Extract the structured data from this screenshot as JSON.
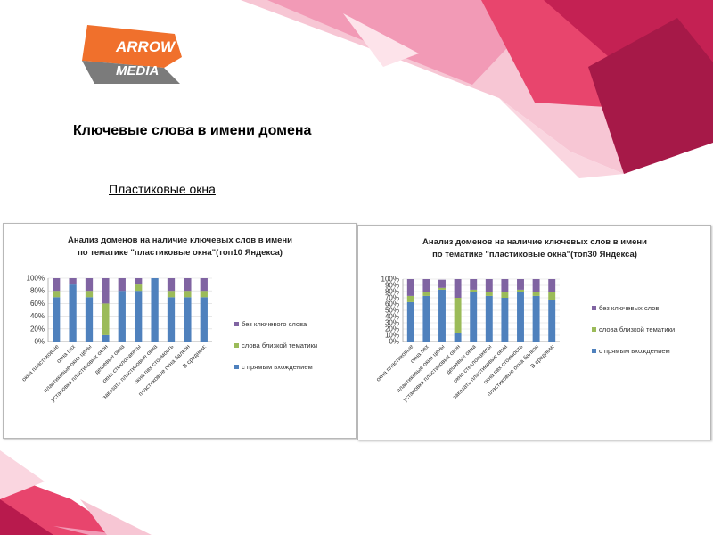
{
  "logo": {
    "line1": "ARROW",
    "line2": "MEDIA"
  },
  "page": {
    "title": "Ключевые слова в имени домена",
    "subtitle": "Пластиковые окна"
  },
  "colors": {
    "direct": "#4f81bd",
    "close": "#9bbb59",
    "none": "#8064a2",
    "accent_red": "#e0264a",
    "logo_orange": "#f0702c",
    "logo_gray": "#7b7b7b"
  },
  "chart_data": [
    {
      "type": "bar",
      "stacked": "percent",
      "title": [
        "Анализ доменов на наличие ключевых слов в имени",
        "по тематике \"пластиковые окна\"(топ10 Яндекса)"
      ],
      "categories": [
        "окна пластиковые",
        "окна пвх",
        "пластиковые окна цены",
        "установка пластиковых окон",
        "дешевые окна",
        "окна стеклопакеты",
        "заказать пластиковые окна",
        "окна пвх стоимость",
        "пластиковые окна балкон",
        "В среднем:"
      ],
      "y_ticks": [
        "0%",
        "20%",
        "40%",
        "60%",
        "80%",
        "100%"
      ],
      "ylim": [
        0,
        100
      ],
      "grid": true,
      "legend_position": "right",
      "series": [
        {
          "name": "с прямым вхождением",
          "values": [
            70,
            90,
            70,
            10,
            80,
            80,
            100,
            70,
            70,
            70
          ]
        },
        {
          "name": "слова близкой тематики",
          "values": [
            10,
            0,
            10,
            50,
            0,
            10,
            0,
            10,
            10,
            10
          ]
        },
        {
          "name": "без ключевого слова",
          "values": [
            20,
            10,
            20,
            40,
            20,
            10,
            0,
            20,
            20,
            20
          ]
        }
      ]
    },
    {
      "type": "bar",
      "stacked": "percent",
      "title": [
        "Анализ доменов на наличие ключевых слов в имени",
        "по тематике \"пластиковые окна\"(топ30 Яндекса)"
      ],
      "categories": [
        "окна пластиковые",
        "окна пвх",
        "пластиковые окна цены",
        "установка пластиковых окон",
        "дешевые окна",
        "окна стеклопакеты",
        "заказать пластиковые окна",
        "окна пвх стоимость",
        "пластиковые окна балкон",
        "В среднем:"
      ],
      "y_ticks": [
        "0%",
        "10%",
        "20%",
        "30%",
        "40%",
        "50%",
        "60%",
        "70%",
        "80%",
        "90%",
        "100%"
      ],
      "ylim": [
        0,
        100
      ],
      "grid": true,
      "legend_position": "right",
      "series": [
        {
          "name": "с прямым вхождением",
          "values": [
            63,
            73,
            83,
            13,
            80,
            73,
            70,
            80,
            73,
            67
          ]
        },
        {
          "name": "слова близкой тематики",
          "values": [
            10,
            7,
            3,
            57,
            3,
            7,
            10,
            3,
            7,
            13
          ]
        },
        {
          "name": "без ключевых слов",
          "values": [
            27,
            20,
            13,
            30,
            17,
            20,
            20,
            17,
            20,
            20
          ]
        }
      ]
    }
  ]
}
